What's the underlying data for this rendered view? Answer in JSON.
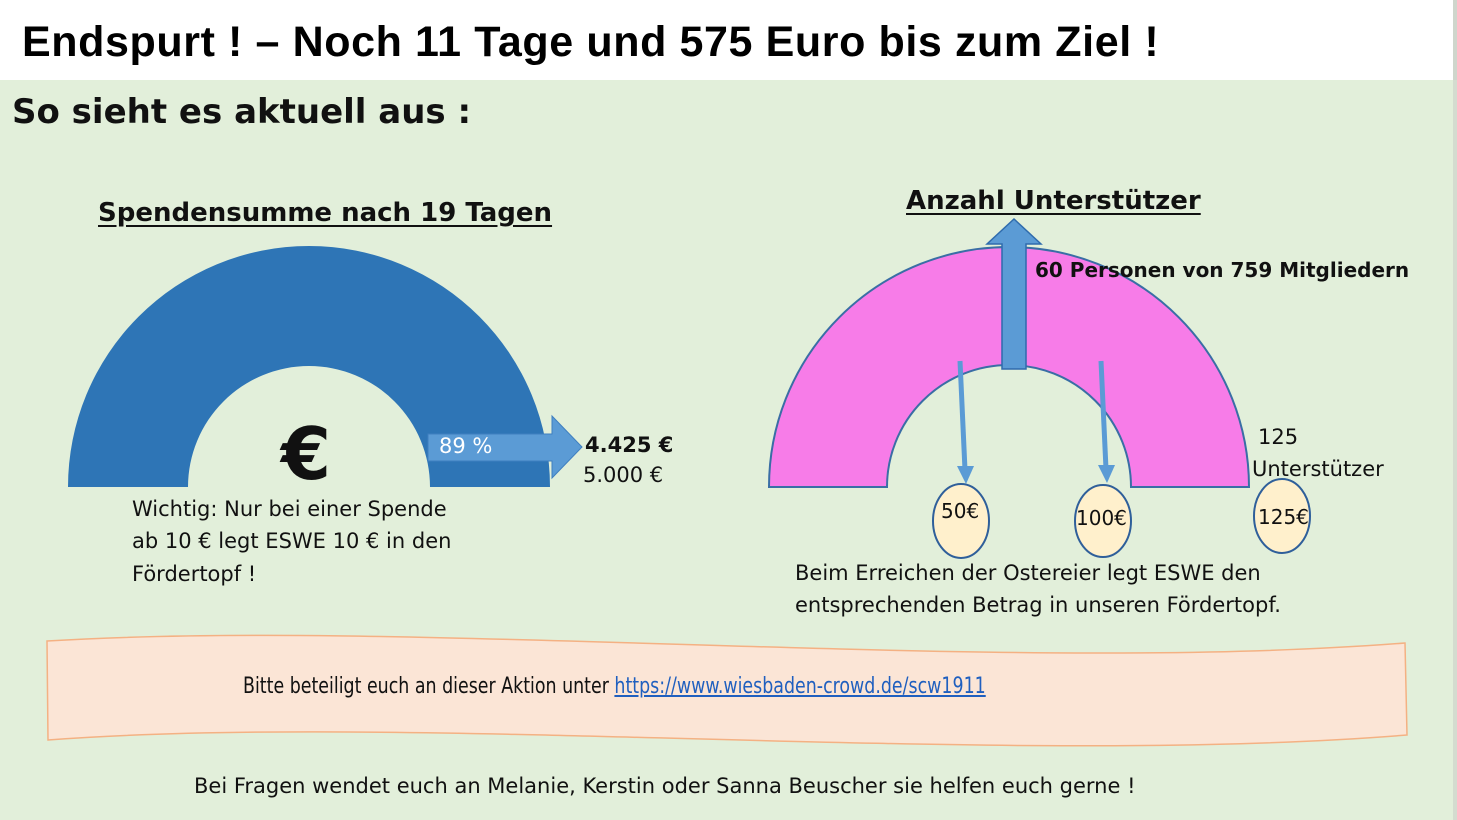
{
  "header": {
    "title": "Endspurt !  – Noch 11 Tage und 575 Euro bis zum Ziel !"
  },
  "subtitle": "So sieht es aktuell aus :",
  "donations": {
    "heading": "Spendensumme nach 19 Tagen",
    "currency_symbol": "€",
    "percent_label": "89 %",
    "progress_fraction": 0.89,
    "current_amount": "4.425 €",
    "goal_amount": "5.000 €",
    "note_lines": [
      "Wichtig: Nur bei einer Spende",
      "ab 10 €  legt ESWE 10 € in den",
      "Fördertopf !"
    ],
    "gauge_color": "#2e75b6"
  },
  "supporters": {
    "heading": "Anzahl Unterstützer",
    "count_label": "60 Personen von 759 Mitgliedern",
    "max_label_lines": [
      "125",
      "Unterstützer"
    ],
    "eggs": [
      "50€",
      "100€",
      "125€"
    ],
    "note_lines": [
      "Beim Erreichen der Ostereier legt ESWE den",
      "entsprechenden Betrag in unseren Fördertopf."
    ],
    "gauge_color": "#f77ce8",
    "egg_color": "#fff0cc",
    "arrow_color": "#5b9bd5"
  },
  "banner": {
    "text": "Bitte beteiligt euch an dieser Aktion unter ",
    "link": "https://www.wiesbaden-crowd.de/scw1911",
    "fill": "#fbe5d6"
  },
  "footer": "Bei Fragen wendet euch an Melanie, Kerstin oder Sanna Beuscher  sie  helfen euch gerne !"
}
